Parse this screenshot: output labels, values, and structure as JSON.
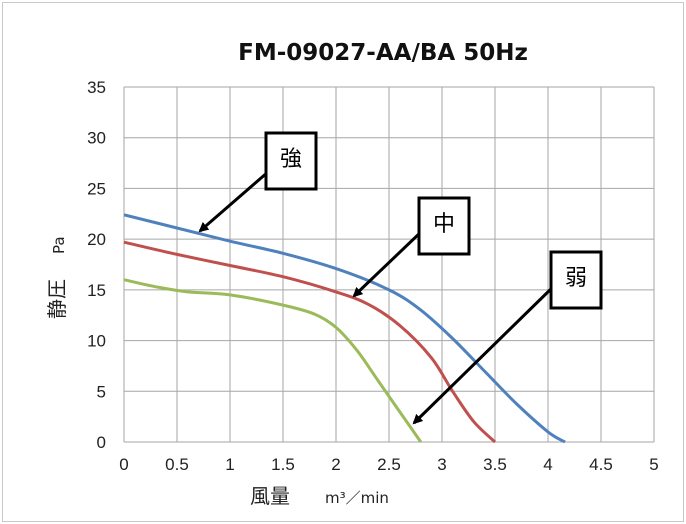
{
  "chart_data": {
    "type": "line",
    "title": "FM-09027-AA/BA   50Hz",
    "xlabel": "風量",
    "xlabel_unit": "m³／min",
    "ylabel": "静圧",
    "ylabel_unit": "Pa",
    "xlim": [
      0,
      5
    ],
    "ylim": [
      0,
      35
    ],
    "xticks": [
      "0",
      "0.5",
      "1",
      "1.5",
      "2",
      "2.5",
      "3",
      "3.5",
      "4",
      "4.5",
      "5"
    ],
    "yticks": [
      "0",
      "5",
      "10",
      "15",
      "20",
      "25",
      "30",
      "35"
    ],
    "grid": true,
    "legend": "none",
    "series": [
      {
        "name": "強",
        "color": "#4f81bd",
        "x": [
          0,
          0.5,
          1.0,
          1.5,
          2.0,
          2.5,
          2.8,
          3.1,
          3.4,
          3.7,
          4.0,
          4.16
        ],
        "y": [
          22.4,
          21.1,
          19.8,
          18.6,
          17.1,
          15.0,
          13.0,
          10.2,
          7.0,
          3.8,
          1.0,
          0
        ]
      },
      {
        "name": "中",
        "color": "#c0504d",
        "x": [
          0,
          0.5,
          1.0,
          1.5,
          2.0,
          2.3,
          2.6,
          2.9,
          3.1,
          3.3,
          3.5
        ],
        "y": [
          19.7,
          18.5,
          17.4,
          16.3,
          14.8,
          13.6,
          11.5,
          8.3,
          5.0,
          2.0,
          0
        ]
      },
      {
        "name": "弱",
        "color": "#9bbb59",
        "x": [
          0,
          0.3,
          0.6,
          1.0,
          1.5,
          1.8,
          2.0,
          2.2,
          2.4,
          2.6,
          2.8
        ],
        "y": [
          16.0,
          15.3,
          14.8,
          14.5,
          13.5,
          12.6,
          11.3,
          9.0,
          6.0,
          3.0,
          0
        ]
      }
    ],
    "annotations": [
      {
        "label": "強",
        "series": "強"
      },
      {
        "label": "中",
        "series": "中"
      },
      {
        "label": "弱",
        "series": "弱"
      }
    ]
  }
}
